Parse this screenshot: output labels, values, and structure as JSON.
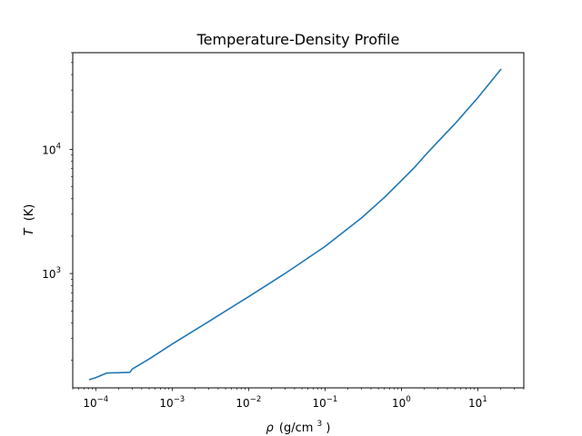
{
  "chart_data": {
    "type": "line",
    "title": "Temperature-Density Profile",
    "xlabel": {
      "symbol": "ρ",
      "unit_prefix": "(g/cm",
      "unit_power": "3",
      "unit_suffix": ")"
    },
    "ylabel": {
      "symbol": "T",
      "unit": "(K)"
    },
    "xscale": "log",
    "yscale": "log",
    "xlim": [
      5e-05,
      40
    ],
    "ylim": [
      120,
      60000
    ],
    "grid": false,
    "legend": "none",
    "x_ticks": [
      {
        "base": "10",
        "exp": "−4",
        "value": 0.0001
      },
      {
        "base": "10",
        "exp": "−3",
        "value": 0.001
      },
      {
        "base": "10",
        "exp": "−2",
        "value": 0.01
      },
      {
        "base": "10",
        "exp": "−1",
        "value": 0.1
      },
      {
        "base": "10",
        "exp": "0",
        "value": 1
      },
      {
        "base": "10",
        "exp": "1",
        "value": 10
      }
    ],
    "y_ticks": [
      {
        "base": "10",
        "exp": "3",
        "value": 1000
      },
      {
        "base": "10",
        "exp": "4",
        "value": 10000
      }
    ],
    "series": [
      {
        "color": "#1f77b4",
        "points": [
          [
            8.3e-05,
            140
          ],
          [
            0.0001,
            145
          ],
          [
            0.00014,
            158
          ],
          [
            0.00028,
            160
          ],
          [
            0.0003,
            170
          ],
          [
            0.0005,
            205
          ],
          [
            0.001,
            270
          ],
          [
            0.003,
            410
          ],
          [
            0.01,
            650
          ],
          [
            0.03,
            1000
          ],
          [
            0.1,
            1650
          ],
          [
            0.3,
            2800
          ],
          [
            0.6,
            4100
          ],
          [
            1.0,
            5600
          ],
          [
            1.5,
            7200
          ],
          [
            2.0,
            8800
          ],
          [
            3.0,
            11500
          ],
          [
            5.0,
            16000
          ],
          [
            10.0,
            26000
          ],
          [
            20.0,
            44000
          ]
        ]
      }
    ]
  }
}
